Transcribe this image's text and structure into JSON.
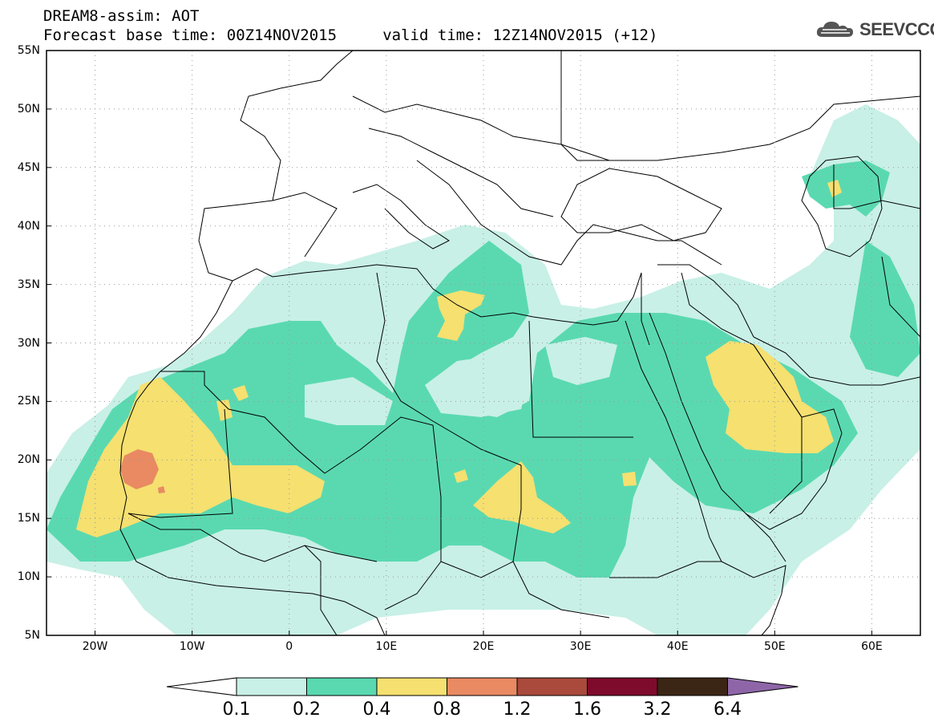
{
  "header": {
    "title_line1": "DREAM8-assim: AOT",
    "title_line2": "Forecast base time: 00Z14NOV2015     valid time: 12Z14NOV2015 (+12)"
  },
  "logo": {
    "text": "SEEVCCC",
    "icon": "cloud-icon",
    "color": "#444444"
  },
  "map": {
    "variable": "AOT",
    "lon_range": [
      -25,
      65
    ],
    "lat_range": [
      5,
      55
    ],
    "lat_ticks": [
      {
        "value": 55,
        "label": "55N"
      },
      {
        "value": 50,
        "label": "50N"
      },
      {
        "value": 45,
        "label": "45N"
      },
      {
        "value": 40,
        "label": "40N"
      },
      {
        "value": 35,
        "label": "35N"
      },
      {
        "value": 30,
        "label": "30N"
      },
      {
        "value": 25,
        "label": "25N"
      },
      {
        "value": 20,
        "label": "20N"
      },
      {
        "value": 15,
        "label": "15N"
      },
      {
        "value": 10,
        "label": "10N"
      },
      {
        "value": 5,
        "label": "5N"
      }
    ],
    "lon_ticks": [
      {
        "value": -20,
        "label": "20W"
      },
      {
        "value": -10,
        "label": "10W"
      },
      {
        "value": 0,
        "label": "0"
      },
      {
        "value": 10,
        "label": "10E"
      },
      {
        "value": 20,
        "label": "20E"
      },
      {
        "value": 30,
        "label": "30E"
      },
      {
        "value": 40,
        "label": "40E"
      },
      {
        "value": 50,
        "label": "50E"
      },
      {
        "value": 60,
        "label": "60E"
      }
    ],
    "grid": "dotted"
  },
  "colorbar": {
    "levels": [
      "0.1",
      "0.2",
      "0.4",
      "0.8",
      "1.2",
      "1.6",
      "3.2",
      "6.4"
    ],
    "colors": [
      "#ffffff",
      "#c8f0e6",
      "#5ad9b0",
      "#f5e070",
      "#e98a62",
      "#a94a3c",
      "#7e0a2c",
      "#3b2514",
      "#8e66a8"
    ]
  }
}
